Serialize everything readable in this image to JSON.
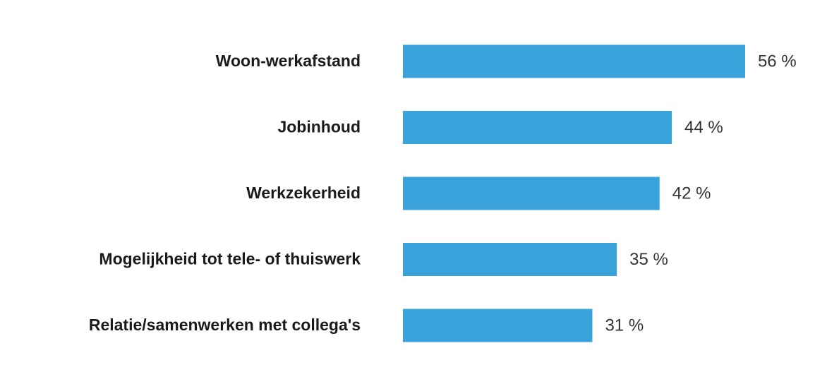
{
  "chart_data": {
    "type": "bar",
    "orientation": "horizontal",
    "categories": [
      "Woon-werkafstand",
      "Jobinhoud",
      "Werkzekerheid",
      "Mogelijkheid tot tele- of thuiswerk",
      "Relatie/samenwerken met collega's"
    ],
    "values": [
      56,
      44,
      42,
      35,
      31
    ],
    "value_labels": [
      "56 %",
      "44 %",
      "42 %",
      "35 %",
      "31 %"
    ],
    "color": "#3ba3dc"
  }
}
